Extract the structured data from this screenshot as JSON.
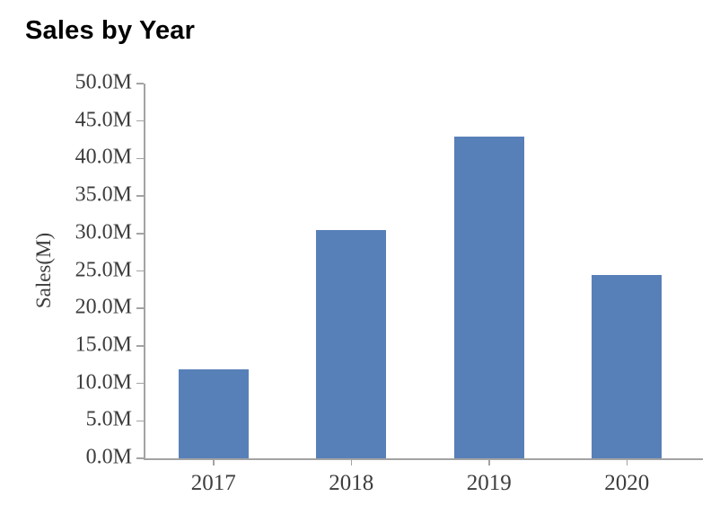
{
  "chart_data": {
    "type": "bar",
    "title": "Sales by Year",
    "xlabel": "",
    "ylabel": "Sales(M)",
    "categories": [
      "2017",
      "2018",
      "2019",
      "2020"
    ],
    "values": [
      11.9,
      30.5,
      42.9,
      24.5
    ],
    "value_unit": "M",
    "ylim": [
      0,
      50
    ],
    "yticks": [
      {
        "v": 0,
        "label": "0.0M"
      },
      {
        "v": 5,
        "label": "5.0M"
      },
      {
        "v": 10,
        "label": "10.0M"
      },
      {
        "v": 15,
        "label": "15.0M"
      },
      {
        "v": 20,
        "label": "20.0M"
      },
      {
        "v": 25,
        "label": "25.0M"
      },
      {
        "v": 30,
        "label": "30.0M"
      },
      {
        "v": 35,
        "label": "35.0M"
      },
      {
        "v": 40,
        "label": "40.0M"
      },
      {
        "v": 45,
        "label": "45.0M"
      },
      {
        "v": 50,
        "label": "50.0M"
      }
    ],
    "grid": false,
    "legend": "none",
    "bar_color": "#5880b8",
    "axis_color": "#a3a3a3",
    "tick_text_color": "#3d3d3d",
    "title_color": "#000000",
    "background_color": "#ffffff"
  }
}
